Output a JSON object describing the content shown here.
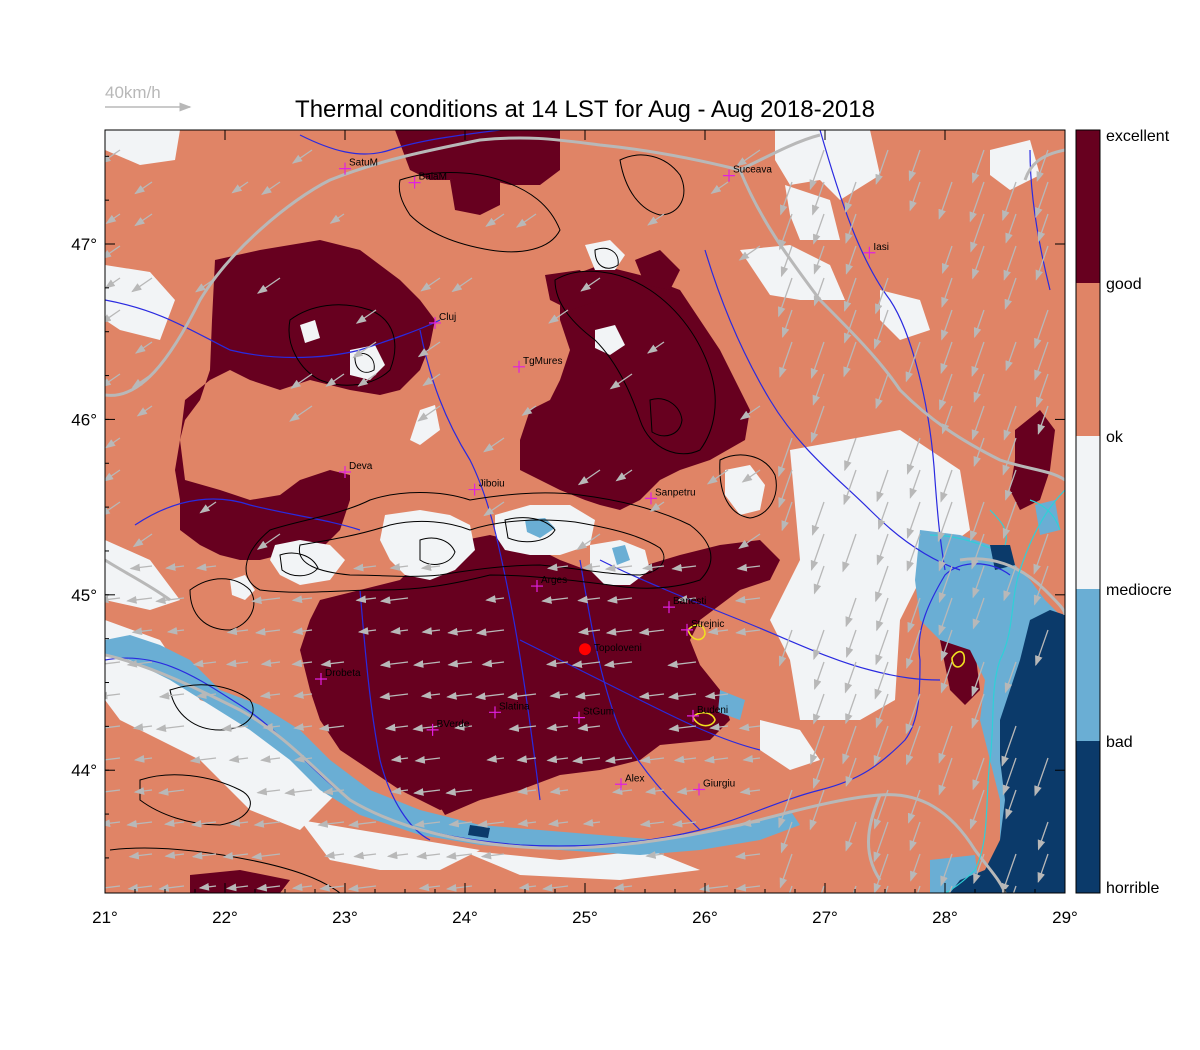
{
  "title": "Thermal conditions at 14 LST for Aug - Aug  2018-2018",
  "scale_label": "40km/h",
  "colors": {
    "excellent": "#67001f",
    "good": "#e08466",
    "ok": "#f2f4f6",
    "mediocre": "#6aaed4",
    "bad": "#0b3a6a",
    "river": "#2a2ae0",
    "border": "#b8b8b8",
    "city_marker": "#e020e0",
    "highlight": "#ff0000"
  },
  "map": {
    "lon_range": [
      21,
      29
    ],
    "lat_range": [
      43.3,
      47.65
    ],
    "x_ticks": [
      "21°",
      "22°",
      "23°",
      "24°",
      "25°",
      "26°",
      "27°",
      "28°",
      "29°"
    ],
    "y_ticks": [
      "44°",
      "45°",
      "46°",
      "47°"
    ]
  },
  "legend": {
    "labels": [
      "excellent",
      "good",
      "ok",
      "mediocre",
      "bad",
      "horrible"
    ]
  },
  "cities": [
    {
      "name": "SatuM",
      "lon": 23.0,
      "lat": 47.43
    },
    {
      "name": "BaiaM",
      "lon": 23.58,
      "lat": 47.35
    },
    {
      "name": "Suceava",
      "lon": 26.2,
      "lat": 47.39
    },
    {
      "name": "Iasi",
      "lon": 27.37,
      "lat": 46.95
    },
    {
      "name": "Cluj",
      "lon": 23.75,
      "lat": 46.55
    },
    {
      "name": "TgMures",
      "lon": 24.45,
      "lat": 46.3
    },
    {
      "name": "Deva",
      "lon": 23.0,
      "lat": 45.7
    },
    {
      "name": "Jiboiu",
      "lon": 24.08,
      "lat": 45.6
    },
    {
      "name": "Sanpetru",
      "lon": 25.55,
      "lat": 45.55
    },
    {
      "name": "Arges",
      "lon": 24.6,
      "lat": 45.05
    },
    {
      "name": "Banesti",
      "lon": 25.7,
      "lat": 44.93
    },
    {
      "name": "Strejnic",
      "lon": 25.85,
      "lat": 44.8
    },
    {
      "name": "Drobeta",
      "lon": 22.8,
      "lat": 44.52
    },
    {
      "name": "Slatina",
      "lon": 24.25,
      "lat": 44.33
    },
    {
      "name": "StGum",
      "lon": 24.95,
      "lat": 44.3
    },
    {
      "name": "Budeni",
      "lon": 25.9,
      "lat": 44.31
    },
    {
      "name": "BVerde",
      "lon": 23.73,
      "lat": 44.23
    },
    {
      "name": "Alex",
      "lon": 25.3,
      "lat": 43.92
    },
    {
      "name": "Giurgiu",
      "lon": 25.95,
      "lat": 43.89
    }
  ],
  "highlight_site": {
    "name": "Topoloveni",
    "lon": 25.0,
    "lat": 44.69
  }
}
